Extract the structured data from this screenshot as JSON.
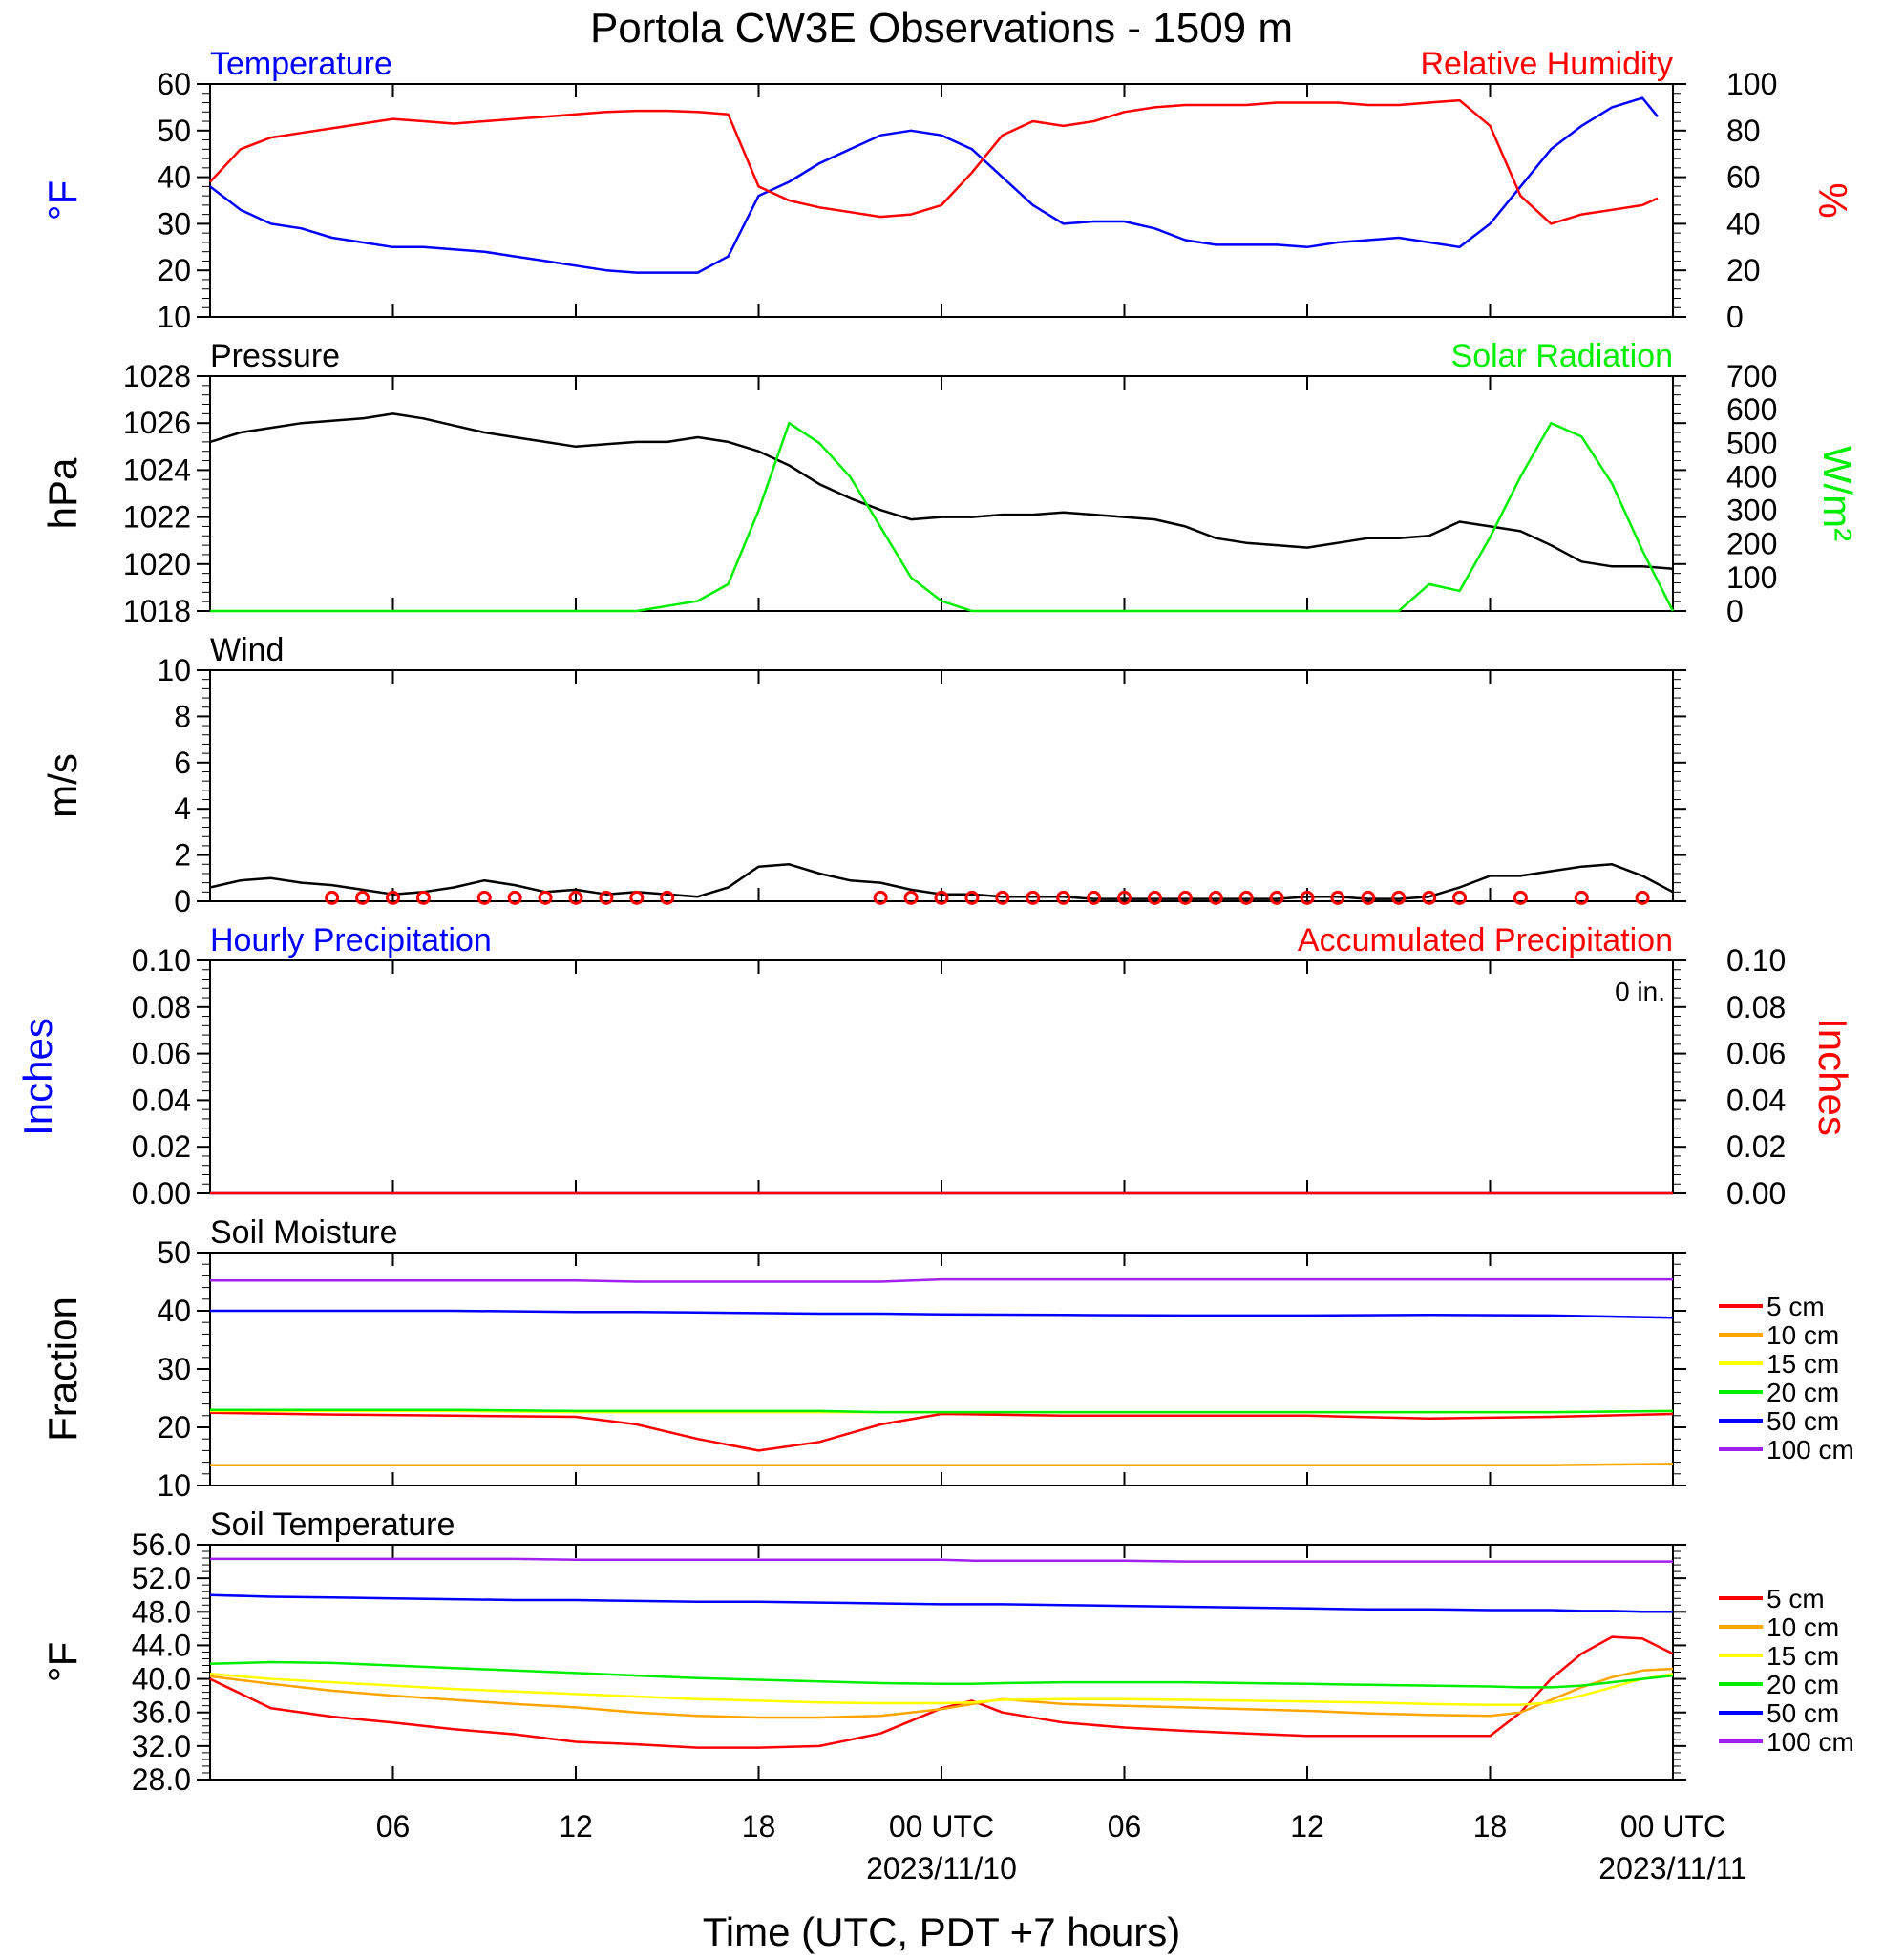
{
  "title": "Portola CW3E Observations - 1509 m",
  "xaxis": {
    "label": "Time (UTC, PDT +7 hours)",
    "start": "2023-11-09 00:00 UTC",
    "end": "2023-11-11 00:00 UTC",
    "ticks": [
      {
        "hour": 6,
        "label": "06"
      },
      {
        "hour": 12,
        "label": "12"
      },
      {
        "hour": 18,
        "label": "18"
      },
      {
        "hour": 24,
        "label": "00 UTC",
        "date": "2023/11/10"
      },
      {
        "hour": 30,
        "label": "06"
      },
      {
        "hour": 36,
        "label": "12"
      },
      {
        "hour": 42,
        "label": "18"
      },
      {
        "hour": 48,
        "label": "00 UTC",
        "date": "2023/11/11"
      }
    ]
  },
  "colors": {
    "temperature": "#0000ff",
    "humidity": "#ff0000",
    "pressure": "#000000",
    "solar": "#00ee00",
    "wind": "#000000",
    "wind_symbol": "#ff0000",
    "hourly_precip": "#0000ff",
    "accum_precip": "#ff0000",
    "depth_5cm": "#ff0000",
    "depth_10cm": "#ffa500",
    "depth_15cm": "#ffff00",
    "depth_20cm": "#00ee00",
    "depth_50cm": "#0000ff",
    "depth_100cm": "#a020f0"
  },
  "chart_data": [
    {
      "type": "line",
      "panel": "temperature_humidity",
      "left_title": "Temperature",
      "right_title": "Relative Humidity",
      "ylabel_left": "°F",
      "ylabel_right": "%",
      "ylim_left": [
        10,
        60
      ],
      "ylim_right": [
        0,
        100
      ],
      "yticks_left": [
        "60",
        "50",
        "40",
        "30",
        "20",
        "10"
      ],
      "yticks_right": [
        "100",
        "80",
        "60",
        "40",
        "20",
        "0"
      ],
      "x": [
        0,
        1,
        2,
        3,
        4,
        5,
        6,
        7,
        8,
        9,
        10,
        11,
        12,
        13,
        14,
        15,
        16,
        17,
        18,
        19,
        20,
        21,
        22,
        23,
        24,
        25,
        26,
        27,
        28,
        29,
        30,
        31,
        32,
        33,
        34,
        35,
        36,
        37,
        38,
        39,
        40,
        41,
        42,
        43,
        44,
        45,
        46,
        47,
        47.5
      ],
      "series": [
        {
          "name": "Temperature",
          "axis": "left",
          "color_key": "temperature",
          "values": [
            38,
            33,
            30,
            29,
            27,
            26,
            25,
            25,
            24.5,
            24,
            23,
            22,
            21,
            20,
            19.5,
            19.5,
            19.5,
            23,
            36,
            39,
            43,
            46,
            49,
            50,
            49,
            46,
            40,
            34,
            30,
            30.5,
            30.5,
            29,
            26.5,
            25.5,
            25.5,
            25.5,
            25,
            26,
            26.5,
            27,
            26,
            25,
            30,
            38,
            46,
            51,
            55,
            57,
            53
          ]
        },
        {
          "name": "Relative Humidity",
          "axis": "right",
          "color_key": "humidity",
          "values": [
            58,
            72,
            77,
            79,
            81,
            83,
            85,
            84,
            83,
            84,
            85,
            86,
            87,
            88,
            88.5,
            88.5,
            88,
            87,
            56,
            50,
            47,
            45,
            43,
            44,
            48,
            62,
            78,
            84,
            82,
            84,
            88,
            90,
            91,
            91,
            91,
            92,
            92,
            92,
            91,
            91,
            92,
            93,
            82,
            52,
            40,
            44,
            46,
            48,
            51
          ]
        }
      ]
    },
    {
      "type": "line",
      "panel": "pressure_solar",
      "left_title": "Pressure",
      "right_title": "Solar Radiation",
      "ylabel_left": "hPa",
      "ylabel_right": "W/m²",
      "ylim_left": [
        1018,
        1028
      ],
      "ylim_right": [
        0,
        700
      ],
      "yticks_left": [
        "1028",
        "1026",
        "1024",
        "1022",
        "1020",
        "1018"
      ],
      "yticks_right": [
        "700",
        "600",
        "500",
        "400",
        "300",
        "200",
        "100",
        "0"
      ],
      "x": [
        0,
        1,
        2,
        3,
        4,
        5,
        6,
        7,
        8,
        9,
        10,
        11,
        12,
        13,
        14,
        15,
        16,
        17,
        18,
        19,
        20,
        21,
        22,
        23,
        24,
        25,
        26,
        27,
        28,
        29,
        30,
        31,
        32,
        33,
        34,
        35,
        36,
        37,
        38,
        39,
        40,
        41,
        42,
        43,
        44,
        45,
        46,
        47,
        48
      ],
      "series": [
        {
          "name": "Pressure",
          "axis": "left",
          "color_key": "pressure",
          "values": [
            1025.2,
            1025.6,
            1025.8,
            1026.0,
            1026.1,
            1026.2,
            1026.4,
            1026.2,
            1025.9,
            1025.6,
            1025.4,
            1025.2,
            1025.0,
            1025.1,
            1025.2,
            1025.2,
            1025.4,
            1025.2,
            1024.8,
            1024.2,
            1023.4,
            1022.8,
            1022.3,
            1021.9,
            1022.0,
            1022.0,
            1022.1,
            1022.1,
            1022.2,
            1022.1,
            1022.0,
            1021.9,
            1021.6,
            1021.1,
            1020.9,
            1020.8,
            1020.7,
            1020.9,
            1021.1,
            1021.1,
            1021.2,
            1021.8,
            1021.6,
            1021.4,
            1020.8,
            1020.1,
            1019.9,
            1019.9,
            1019.8
          ]
        },
        {
          "name": "Solar Radiation",
          "axis": "right",
          "color_key": "solar",
          "values": [
            0,
            0,
            0,
            0,
            0,
            0,
            0,
            0,
            0,
            0,
            0,
            0,
            0,
            0,
            0,
            15,
            30,
            80,
            300,
            560,
            500,
            400,
            250,
            100,
            30,
            0,
            0,
            0,
            0,
            0,
            0,
            0,
            0,
            0,
            0,
            0,
            0,
            0,
            0,
            0,
            80,
            60,
            220,
            400,
            560,
            520,
            380,
            180,
            0
          ]
        }
      ]
    },
    {
      "type": "line",
      "panel": "wind",
      "left_title": "Wind",
      "ylabel_left": "m/s",
      "ylim_left": [
        0,
        10
      ],
      "yticks_left": [
        "10",
        "8",
        "6",
        "4",
        "2",
        "0"
      ],
      "x": [
        0,
        1,
        2,
        3,
        4,
        5,
        6,
        7,
        8,
        9,
        10,
        11,
        12,
        13,
        14,
        15,
        16,
        17,
        18,
        19,
        20,
        21,
        22,
        23,
        24,
        25,
        26,
        27,
        28,
        29,
        30,
        31,
        32,
        33,
        34,
        35,
        36,
        37,
        38,
        39,
        40,
        41,
        42,
        43,
        44,
        45,
        46,
        47,
        48
      ],
      "series": [
        {
          "name": "Wind speed",
          "axis": "left",
          "color_key": "wind",
          "values": [
            0.6,
            0.9,
            1.0,
            0.8,
            0.7,
            0.5,
            0.3,
            0.4,
            0.6,
            0.9,
            0.7,
            0.4,
            0.5,
            0.3,
            0.4,
            0.3,
            0.2,
            0.6,
            1.5,
            1.6,
            1.2,
            0.9,
            0.8,
            0.5,
            0.3,
            0.3,
            0.2,
            0.2,
            0.2,
            0.1,
            0.1,
            0.1,
            0.1,
            0.1,
            0.1,
            0.1,
            0.2,
            0.2,
            0.1,
            0.1,
            0.2,
            0.6,
            1.1,
            1.1,
            1.3,
            1.5,
            1.6,
            1.1,
            0.4
          ]
        }
      ],
      "station_circle_hours": [
        4,
        5,
        6,
        7,
        9,
        10,
        11,
        12,
        13,
        14,
        15,
        22,
        23,
        24,
        25,
        26,
        27,
        28,
        29,
        30,
        31,
        32,
        33,
        34,
        35,
        36,
        37,
        38,
        39,
        40,
        41,
        43,
        45,
        47
      ]
    },
    {
      "type": "line",
      "panel": "precipitation",
      "left_title": "Hourly Precipitation",
      "right_title": "Accumulated Precipitation",
      "annotation": "0 in.",
      "ylabel_left": "Inches",
      "ylabel_right": "Inches",
      "ylim_left": [
        0,
        0.1
      ],
      "ylim_right": [
        0,
        0.1
      ],
      "yticks_left": [
        "0.10",
        "0.08",
        "0.06",
        "0.04",
        "0.02",
        "0.00"
      ],
      "yticks_right": [
        "0.10",
        "0.08",
        "0.06",
        "0.04",
        "0.02",
        "0.00"
      ],
      "x": [
        0,
        48
      ],
      "series": [
        {
          "name": "Hourly Precipitation",
          "axis": "left",
          "color_key": "hourly_precip",
          "values": [
            0,
            0
          ]
        },
        {
          "name": "Accumulated Precipitation",
          "axis": "left",
          "color_key": "accum_precip",
          "values": [
            0,
            0
          ]
        }
      ]
    },
    {
      "type": "line",
      "panel": "soil_moisture",
      "left_title": "Soil Moisture",
      "ylabel_left": "Fraction",
      "ylim_left": [
        10,
        50
      ],
      "yticks_left": [
        "50",
        "40",
        "30",
        "20",
        "10"
      ],
      "x": [
        0,
        4,
        8,
        12,
        14,
        16,
        18,
        20,
        22,
        24,
        28,
        32,
        36,
        40,
        44,
        48
      ],
      "series": [
        {
          "name": "5 cm",
          "color_key": "depth_5cm",
          "values": [
            22.5,
            22.2,
            22.0,
            21.8,
            20.5,
            18.0,
            16.0,
            17.5,
            20.5,
            22.3,
            22.0,
            22.0,
            22.0,
            21.5,
            21.8,
            22.3
          ]
        },
        {
          "name": "10 cm",
          "color_key": "depth_10cm",
          "values": [
            13.5,
            13.5,
            13.5,
            13.5,
            13.5,
            13.5,
            13.5,
            13.5,
            13.5,
            13.5,
            13.5,
            13.5,
            13.5,
            13.5,
            13.5,
            13.7
          ]
        },
        {
          "name": "15 cm",
          "color_key": "depth_15cm",
          "values": [
            22.8,
            22.8,
            22.8,
            22.6,
            22.6,
            22.6,
            22.6,
            22.6,
            22.6,
            22.6,
            22.6,
            22.6,
            22.6,
            22.6,
            22.6,
            22.8
          ]
        },
        {
          "name": "20 cm",
          "color_key": "depth_20cm",
          "values": [
            23.0,
            23.0,
            23.0,
            22.8,
            22.8,
            22.8,
            22.8,
            22.8,
            22.6,
            22.6,
            22.6,
            22.6,
            22.6,
            22.6,
            22.6,
            22.8
          ]
        },
        {
          "name": "50 cm",
          "color_key": "depth_50cm",
          "values": [
            40.0,
            40.0,
            40.0,
            39.8,
            39.8,
            39.7,
            39.6,
            39.5,
            39.5,
            39.4,
            39.3,
            39.2,
            39.2,
            39.3,
            39.2,
            38.8
          ]
        },
        {
          "name": "100 cm",
          "color_key": "depth_100cm",
          "values": [
            45.2,
            45.2,
            45.2,
            45.2,
            45.0,
            45.0,
            45.0,
            45.0,
            45.0,
            45.4,
            45.4,
            45.4,
            45.4,
            45.4,
            45.4,
            45.4
          ]
        }
      ]
    },
    {
      "type": "line",
      "panel": "soil_temperature",
      "left_title": "Soil Temperature",
      "ylabel_left": "°F",
      "ylim_left": [
        28,
        56
      ],
      "yticks_left": [
        "56.0",
        "52.0",
        "48.0",
        "44.0",
        "40.0",
        "36.0",
        "32.0",
        "28.0"
      ],
      "x": [
        0,
        2,
        4,
        6,
        8,
        10,
        12,
        14,
        16,
        18,
        20,
        22,
        24,
        25,
        26,
        28,
        30,
        32,
        34,
        36,
        38,
        40,
        42,
        43,
        44,
        45,
        46,
        47,
        48
      ],
      "series": [
        {
          "name": "5 cm",
          "color_key": "depth_5cm",
          "values": [
            40.0,
            36.5,
            35.5,
            34.8,
            34.0,
            33.4,
            32.5,
            32.2,
            31.8,
            31.8,
            32.0,
            33.5,
            36.5,
            37.4,
            36.0,
            34.8,
            34.2,
            33.8,
            33.5,
            33.2,
            33.2,
            33.2,
            33.2,
            36.0,
            40.0,
            43.0,
            45.0,
            44.8,
            43.0
          ]
        },
        {
          "name": "10 cm",
          "color_key": "depth_10cm",
          "values": [
            40.3,
            39.4,
            38.6,
            38.0,
            37.5,
            37.0,
            36.6,
            36.0,
            35.6,
            35.4,
            35.4,
            35.6,
            36.4,
            37.0,
            37.6,
            37.0,
            36.8,
            36.6,
            36.4,
            36.2,
            35.9,
            35.7,
            35.6,
            36.0,
            37.5,
            39.0,
            40.2,
            41.0,
            41.2
          ]
        },
        {
          "name": "15 cm",
          "color_key": "depth_15cm",
          "values": [
            40.6,
            40.0,
            39.6,
            39.2,
            38.8,
            38.5,
            38.2,
            37.9,
            37.6,
            37.4,
            37.2,
            37.1,
            37.1,
            37.2,
            37.5,
            37.6,
            37.6,
            37.5,
            37.4,
            37.3,
            37.2,
            37.0,
            36.9,
            36.9,
            37.2,
            38.0,
            39.0,
            40.0,
            40.6
          ]
        },
        {
          "name": "20 cm",
          "color_key": "depth_20cm",
          "values": [
            41.8,
            42.0,
            41.9,
            41.6,
            41.3,
            41.0,
            40.7,
            40.4,
            40.1,
            39.9,
            39.7,
            39.5,
            39.4,
            39.4,
            39.5,
            39.6,
            39.6,
            39.6,
            39.5,
            39.4,
            39.3,
            39.2,
            39.1,
            39.0,
            39.0,
            39.2,
            39.6,
            40.0,
            40.4
          ]
        },
        {
          "name": "50 cm",
          "color_key": "depth_50cm",
          "values": [
            50.0,
            49.8,
            49.7,
            49.6,
            49.5,
            49.4,
            49.4,
            49.3,
            49.2,
            49.2,
            49.1,
            49.0,
            48.9,
            48.9,
            48.9,
            48.8,
            48.7,
            48.6,
            48.5,
            48.4,
            48.3,
            48.3,
            48.2,
            48.2,
            48.2,
            48.1,
            48.1,
            48.0,
            48.0
          ]
        },
        {
          "name": "100 cm",
          "color_key": "depth_100cm",
          "values": [
            54.3,
            54.3,
            54.3,
            54.3,
            54.3,
            54.3,
            54.2,
            54.2,
            54.2,
            54.2,
            54.2,
            54.2,
            54.2,
            54.1,
            54.1,
            54.1,
            54.1,
            54.0,
            54.0,
            54.0,
            54.0,
            54.0,
            54.0,
            54.0,
            54.0,
            54.0,
            54.0,
            54.0,
            54.0
          ]
        }
      ]
    }
  ]
}
